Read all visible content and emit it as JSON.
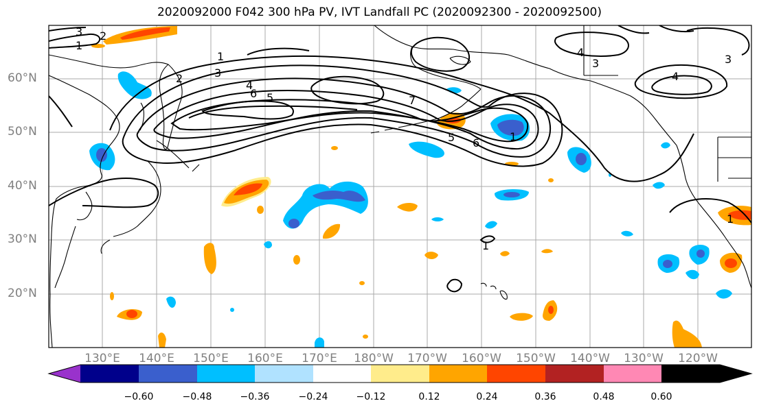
{
  "title": "2020092000 F042 300 hPa PV, IVT Landfall PC (2020092300 - 2020092500)",
  "latitude_labels": [
    "60°N",
    "50°N",
    "40°N",
    "30°N",
    "20°N"
  ],
  "longitude_labels": [
    "130°E",
    "140°E",
    "150°E",
    "160°E",
    "170°E",
    "180°W",
    "170°W",
    "160°W",
    "150°W",
    "140°W",
    "130°W",
    "120°W"
  ],
  "contour_labels": [
    "1",
    "2",
    "3",
    "4",
    "5",
    "6",
    "7",
    "1",
    "2",
    "3",
    "4",
    "3",
    "5",
    "6",
    "1",
    "1",
    "1",
    "3",
    "4"
  ],
  "colorbar": {
    "tick_labels": [
      "−0.60",
      "−0.48",
      "−0.36",
      "−0.24",
      "−0.12",
      "0.12",
      "0.24",
      "0.36",
      "0.48",
      "0.60"
    ],
    "colors": [
      "#9932CC",
      "#00008B",
      "#3A5FCD",
      "#00BFFF",
      "#B0E2FF",
      "#FFFFFF",
      "#FFEC8B",
      "#FFA500",
      "#FF4500",
      "#B22222",
      "#FF88B4"
    ]
  },
  "colors": {
    "contour": "#000000",
    "grid": "#a0a0a0",
    "coastline": "#000000"
  }
}
